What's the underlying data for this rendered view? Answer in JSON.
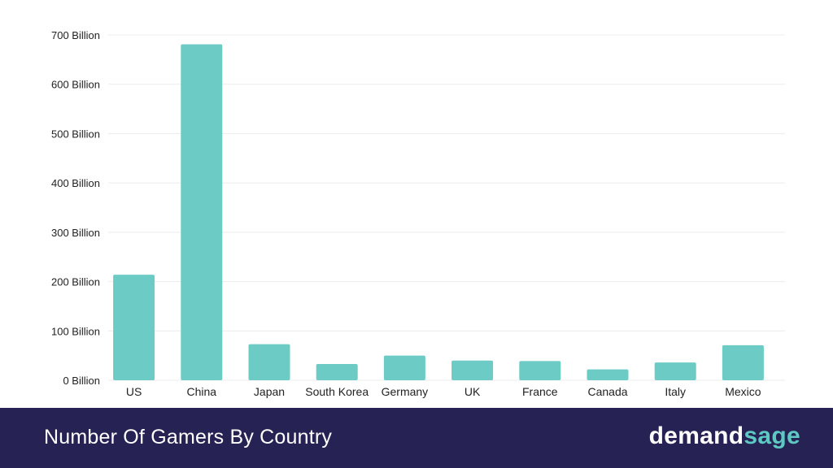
{
  "chart_data": {
    "type": "bar",
    "title": "Number Of Gamers By Country",
    "categories": [
      "US",
      "China",
      "Japan",
      "South Korea",
      "Germany",
      "UK",
      "France",
      "Canada",
      "Italy",
      "Mexico"
    ],
    "values": [
      214,
      681,
      73,
      33,
      50,
      40,
      39,
      22,
      36,
      71
    ],
    "yticks": [
      "0 Billion",
      "100 Billion",
      "200 Billion",
      "300 Billion",
      "400 Billion",
      "500 Billion",
      "600 Billion",
      "700 Billion"
    ],
    "ylim": [
      0,
      700
    ],
    "grid": true,
    "bar_color": "#6ccbc5"
  },
  "footer": {
    "title": "Number Of Gamers By Country",
    "logo_part1": "demand",
    "logo_part2": "sage"
  },
  "colors": {
    "footer_bg": "#262253",
    "accent": "#5ec9c3"
  }
}
